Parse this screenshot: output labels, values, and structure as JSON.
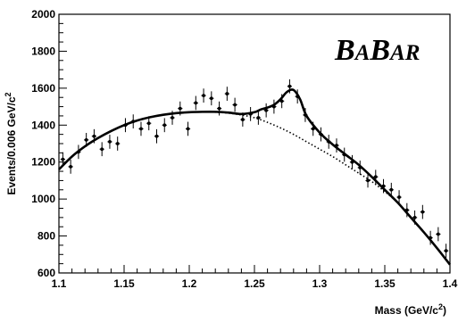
{
  "chart_data": {
    "type": "scatter",
    "title": "",
    "xlabel": "Mass (GeV/c",
    "xlabel_sup": "2",
    "xlabel_tail": ")",
    "ylabel": "Events/0.006 GeV/c",
    "ylabel_sup": "2",
    "xlim": [
      1.1,
      1.4
    ],
    "ylim": [
      600,
      2000
    ],
    "x_ticks": [
      "1.1",
      "1.15",
      "1.2",
      "1.25",
      "1.3",
      "1.35",
      "1.4"
    ],
    "y_ticks": [
      "600",
      "800",
      "1000",
      "1200",
      "1400",
      "1600",
      "1800",
      "2000"
    ],
    "grid": false,
    "legend": "none",
    "logo": "BABAR",
    "series": [
      {
        "kind": "data-points-with-error-bars",
        "x": [
          1.103,
          1.109,
          1.115,
          1.121,
          1.127,
          1.133,
          1.139,
          1.145,
          1.151,
          1.157,
          1.163,
          1.169,
          1.175,
          1.181,
          1.187,
          1.193,
          1.199,
          1.205,
          1.211,
          1.217,
          1.223,
          1.229,
          1.235,
          1.241,
          1.247,
          1.253,
          1.259,
          1.265,
          1.271,
          1.277,
          1.283,
          1.289,
          1.295,
          1.301,
          1.307,
          1.313,
          1.319,
          1.325,
          1.331,
          1.337,
          1.343,
          1.349,
          1.355,
          1.361,
          1.367,
          1.373,
          1.379,
          1.385,
          1.391,
          1.397
        ],
        "y": [
          1215,
          1175,
          1255,
          1320,
          1340,
          1270,
          1310,
          1300,
          1400,
          1420,
          1380,
          1410,
          1340,
          1400,
          1440,
          1490,
          1380,
          1520,
          1560,
          1545,
          1490,
          1570,
          1510,
          1430,
          1460,
          1440,
          1480,
          1500,
          1530,
          1610,
          1555,
          1455,
          1380,
          1350,
          1310,
          1290,
          1240,
          1200,
          1170,
          1100,
          1120,
          1070,
          1050,
          1010,
          940,
          900,
          930,
          790,
          810,
          720
        ],
        "yerr": 38
      },
      {
        "kind": "fit-total",
        "style": "solid",
        "x": [
          1.1,
          1.11,
          1.12,
          1.13,
          1.14,
          1.15,
          1.16,
          1.17,
          1.18,
          1.19,
          1.2,
          1.21,
          1.22,
          1.23,
          1.24,
          1.25,
          1.255,
          1.26,
          1.265,
          1.27,
          1.275,
          1.28,
          1.285,
          1.29,
          1.3,
          1.31,
          1.32,
          1.33,
          1.34,
          1.35,
          1.36,
          1.37,
          1.38,
          1.39,
          1.4
        ],
        "y": [
          1160,
          1230,
          1285,
          1330,
          1368,
          1400,
          1425,
          1443,
          1456,
          1465,
          1470,
          1472,
          1472,
          1468,
          1460,
          1470,
          1485,
          1495,
          1510,
          1540,
          1580,
          1590,
          1540,
          1450,
          1360,
          1295,
          1240,
          1185,
          1120,
          1050,
          980,
          900,
          820,
          735,
          645
        ]
      },
      {
        "kind": "fit-background",
        "style": "dotted",
        "x": [
          1.1,
          1.11,
          1.12,
          1.13,
          1.14,
          1.15,
          1.16,
          1.17,
          1.18,
          1.19,
          1.2,
          1.21,
          1.22,
          1.23,
          1.24,
          1.25,
          1.26,
          1.27,
          1.28,
          1.29,
          1.3,
          1.31,
          1.32,
          1.33,
          1.34,
          1.35,
          1.36,
          1.37,
          1.38,
          1.39,
          1.4
        ],
        "y": [
          1160,
          1230,
          1285,
          1330,
          1368,
          1400,
          1425,
          1443,
          1456,
          1465,
          1470,
          1472,
          1470,
          1465,
          1455,
          1440,
          1415,
          1385,
          1350,
          1310,
          1270,
          1230,
          1185,
          1140,
          1095,
          1040,
          980,
          900,
          820,
          735,
          645
        ]
      }
    ]
  }
}
